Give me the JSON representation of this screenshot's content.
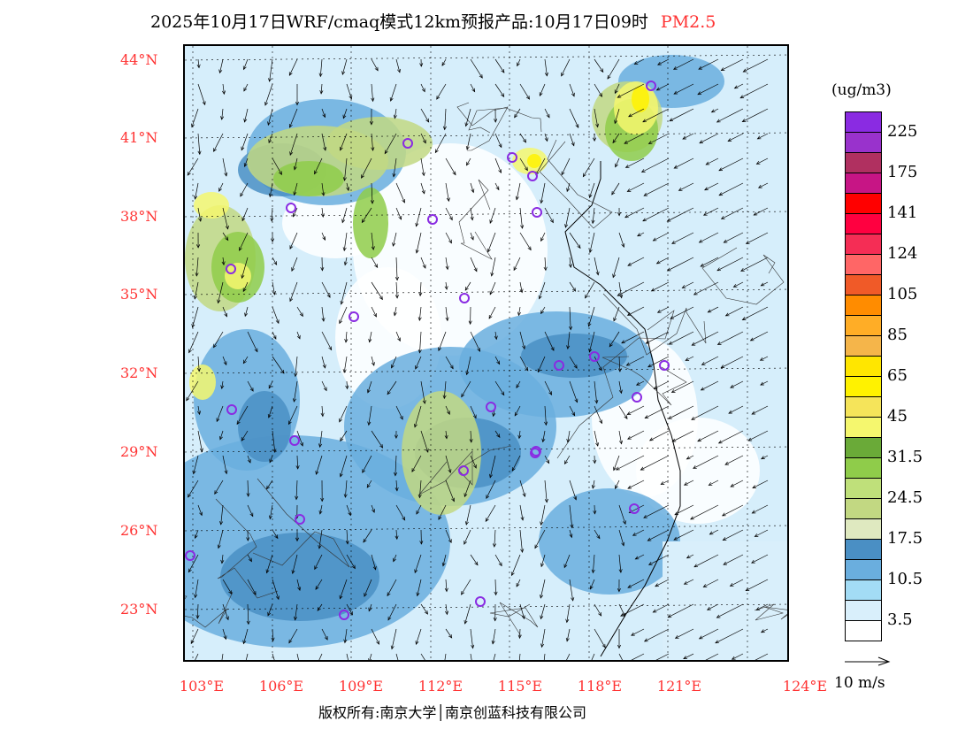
{
  "title": {
    "main": "2025年10月17日WRF/cmaq模式12km预报产品:10月17日09时",
    "variable": "PM2.5",
    "variable_color": "#ff3333"
  },
  "latitude_labels": [
    "44°N",
    "41°N",
    "38°N",
    "35°N",
    "32°N",
    "29°N",
    "26°N",
    "23°N"
  ],
  "longitude_labels": [
    "103°E",
    "106°E",
    "109°E",
    "112°E",
    "115°E",
    "118°E",
    "121°E",
    "124°E"
  ],
  "colorbar": {
    "unit": "(ug/m3)",
    "labels": [
      "225",
      "175",
      "141",
      "124",
      "105",
      "85",
      "65",
      "45",
      "31.5",
      "24.5",
      "17.5",
      "10.5",
      "3.5"
    ],
    "colors": [
      "#8a2be2",
      "#9932cc",
      "#b03060",
      "#c71585",
      "#ff0000",
      "#ff0040",
      "#f52d55",
      "#ff6666",
      "#f05a28",
      "#ff8c00",
      "#ffad26",
      "#f5b54a",
      "#ffe600",
      "#fff200",
      "#f5e45a",
      "#f5f76e",
      "#6aaa38",
      "#8fcc4a",
      "#bfe07a",
      "#c2d882",
      "#dfe9c0",
      "#4a8fc4",
      "#6aaede",
      "#a3dcf5",
      "#d9effb",
      "#ffffff"
    ]
  },
  "wind_reference": {
    "label": "10 m/s"
  },
  "footer": {
    "copyright": "版权所有:南京大学│南京创蓝科技有限公司"
  }
}
